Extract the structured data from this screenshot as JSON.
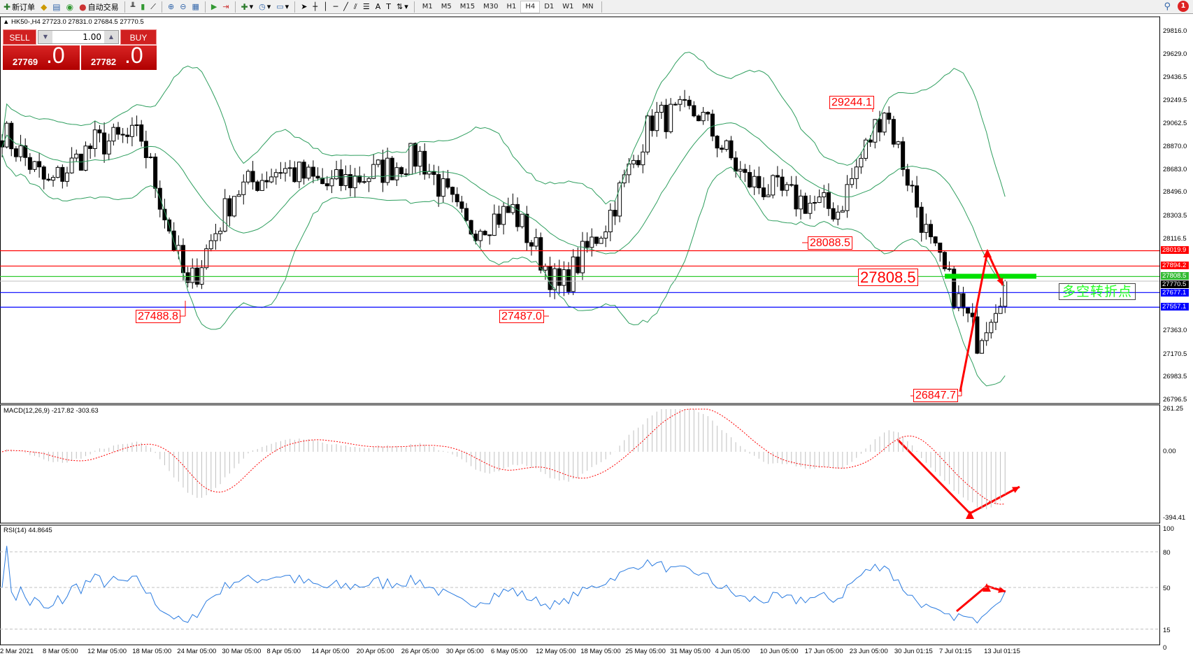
{
  "toolbar": {
    "new_order": "新订单",
    "auto_trading": "自动交易",
    "timeframes": [
      "M1",
      "M5",
      "M15",
      "M30",
      "H1",
      "H4",
      "D1",
      "W1",
      "MN"
    ],
    "active_timeframe": "H4",
    "notification_count": "1"
  },
  "chart": {
    "symbol_info": "HK50-,H4  27723.0 27831.0 27684.5 27770.5",
    "one_click": {
      "sell": "SELL",
      "buy": "BUY",
      "lot": "1.00",
      "sell_price": "27769",
      "sell_big": ".0",
      "buy_price": "27782",
      "buy_big": ".0"
    },
    "price_axis": [
      "29816.0",
      "29629.0",
      "29436.5",
      "29249.5",
      "29062.5",
      "28870.0",
      "28683.0",
      "28496.0",
      "28303.5",
      "28116.5",
      "27363.0",
      "27170.5",
      "26983.5",
      "26796.5"
    ],
    "lines": [
      {
        "value": "28019.9",
        "color": "#ff0000"
      },
      {
        "value": "27894.2",
        "color": "#ff0000"
      },
      {
        "value": "27808.5",
        "color": "#33cc33"
      },
      {
        "value": "27770.5",
        "color": "#000000"
      },
      {
        "value": "27677.1",
        "color": "#0000ff"
      },
      {
        "value": "27557.1",
        "color": "#0000ff"
      }
    ],
    "annotations": [
      "29244.1",
      "28088.5",
      "27808.5",
      "26847.7",
      "27488.8",
      "27487.0"
    ],
    "turning_point_label": "多空转折点",
    "colors": {
      "bands": "#2e9e5e",
      "arrow": "#ff0000",
      "bull": "#ffffff",
      "bear": "#000000",
      "highlight": "#00e000"
    }
  },
  "chart_data": {
    "type": "candlestick",
    "close_path": [
      29000,
      28550,
      28900,
      28950,
      27700,
      28500,
      28700,
      28550,
      28650,
      28800,
      28200,
      28350,
      27700,
      28250,
      29100,
      29150,
      28600,
      28450,
      28350,
      29200,
      28050,
      27300,
      27770.5
    ],
    "last_ohlc": [
      27723.0,
      27831.0,
      27684.5,
      27770.5
    ]
  },
  "macd": {
    "label": "MACD(12,26,9) -217.82 -303.63",
    "axis": [
      "261.25",
      "0.00",
      "-394.41"
    ]
  },
  "rsi": {
    "label": "RSI(14) 44.8645",
    "axis": [
      "100",
      "80",
      "50",
      "15",
      "0"
    ]
  },
  "time_axis": [
    "2 Mar 2021",
    "8 Mar 05:00",
    "12 Mar 05:00",
    "18 Mar 05:00",
    "24 Mar 05:00",
    "30 Mar 05:00",
    "8 Apr 05:00",
    "14 Apr 05:00",
    "20 Apr 05:00",
    "26 Apr 05:00",
    "30 Apr 05:00",
    "6 May 05:00",
    "12 May 05:00",
    "18 May 05:00",
    "25 May 05:00",
    "31 May 05:00",
    "4 Jun 05:00",
    "10 Jun 05:00",
    "17 Jun 05:00",
    "23 Jun 05:00",
    "30 Jun 01:15",
    "7 Jul 01:15",
    "13 Jul 01:15"
  ]
}
